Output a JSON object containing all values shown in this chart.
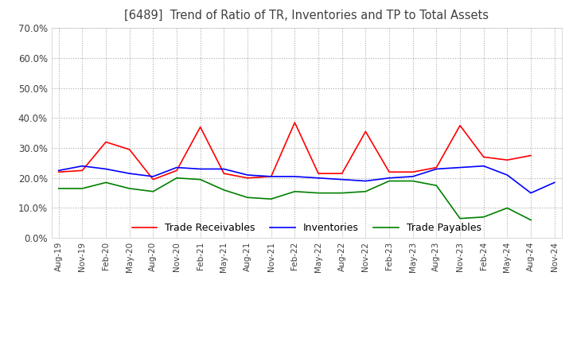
{
  "title": "[6489]  Trend of Ratio of TR, Inventories and TP to Total Assets",
  "x_labels": [
    "Aug-19",
    "Nov-19",
    "Feb-20",
    "May-20",
    "Aug-20",
    "Nov-20",
    "Feb-21",
    "May-21",
    "Aug-21",
    "Nov-21",
    "Feb-22",
    "May-22",
    "Aug-22",
    "Nov-22",
    "Feb-23",
    "May-23",
    "Aug-23",
    "Nov-23",
    "Feb-24",
    "May-24",
    "Aug-24",
    "Nov-24"
  ],
  "trade_receivables": [
    0.22,
    0.225,
    0.32,
    0.295,
    0.195,
    0.225,
    0.37,
    0.215,
    0.2,
    0.205,
    0.385,
    0.215,
    0.215,
    0.355,
    0.22,
    0.22,
    0.235,
    0.375,
    0.27,
    0.26,
    0.275,
    null
  ],
  "inventories": [
    0.225,
    0.24,
    0.23,
    0.215,
    0.205,
    0.235,
    0.23,
    0.23,
    0.21,
    0.205,
    0.205,
    0.2,
    0.195,
    0.19,
    0.2,
    0.205,
    0.23,
    0.235,
    0.24,
    0.21,
    0.15,
    0.185
  ],
  "trade_payables": [
    0.165,
    0.165,
    0.185,
    0.165,
    0.155,
    0.2,
    0.195,
    0.16,
    0.135,
    0.13,
    0.155,
    0.15,
    0.15,
    0.155,
    0.19,
    0.19,
    0.175,
    0.065,
    0.07,
    0.1,
    0.06,
    null
  ],
  "ylim": [
    0.0,
    0.7
  ],
  "yticks": [
    0.0,
    0.1,
    0.2,
    0.3,
    0.4,
    0.5,
    0.6,
    0.7
  ],
  "color_tr": "#FF0000",
  "color_inv": "#0000FF",
  "color_tp": "#008000",
  "background_color": "#FFFFFF",
  "grid_color": "#AAAAAA",
  "title_color": "#404040",
  "legend_labels": [
    "Trade Receivables",
    "Inventories",
    "Trade Payables"
  ]
}
